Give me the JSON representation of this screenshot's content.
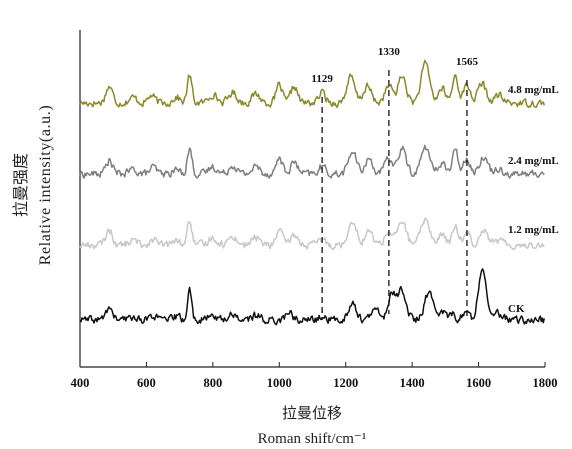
{
  "chart_data": {
    "type": "line",
    "xlabel_cn": "拉曼位移",
    "xlabel_en": "Roman shift/cm⁻¹",
    "ylabel_cn": "拉曼强度",
    "ylabel_en": "Relative intensity(a.u.)",
    "xlim": [
      400,
      1800
    ],
    "x_ticks": [
      400,
      600,
      800,
      1000,
      1200,
      1400,
      1600,
      1800
    ],
    "grid": false,
    "annotations": [
      {
        "label": "1129",
        "x": 1129
      },
      {
        "label": "1330",
        "x": 1330
      },
      {
        "label": "1565",
        "x": 1565
      }
    ],
    "series": [
      {
        "name": "4.8 mg/mL",
        "color": "#8a8a2a",
        "baseline": 0.0,
        "peaks": [
          [
            488,
            0.55,
            10
          ],
          [
            560,
            0.18,
            12
          ],
          [
            615,
            0.25,
            10
          ],
          [
            690,
            0.2,
            10
          ],
          [
            730,
            0.9,
            7
          ],
          [
            800,
            0.3,
            12
          ],
          [
            860,
            0.35,
            12
          ],
          [
            930,
            0.3,
            12
          ],
          [
            1000,
            0.6,
            9
          ],
          [
            1045,
            0.55,
            10
          ],
          [
            1129,
            0.35,
            10
          ],
          [
            1215,
            0.85,
            12
          ],
          [
            1265,
            0.55,
            12
          ],
          [
            1330,
            0.55,
            12
          ],
          [
            1370,
            0.9,
            12
          ],
          [
            1440,
            1.3,
            13
          ],
          [
            1490,
            0.5,
            10
          ],
          [
            1530,
            0.9,
            9
          ],
          [
            1565,
            0.6,
            10
          ],
          [
            1610,
            0.65,
            12
          ],
          [
            1660,
            0.25,
            12
          ]
        ]
      },
      {
        "name": "2.4 mg/mL",
        "color": "#7f7f7f",
        "baseline": 0.0,
        "peaks": [
          [
            488,
            0.45,
            10
          ],
          [
            560,
            0.15,
            12
          ],
          [
            620,
            0.22,
            10
          ],
          [
            690,
            0.15,
            10
          ],
          [
            730,
            0.85,
            7
          ],
          [
            800,
            0.25,
            12
          ],
          [
            860,
            0.3,
            12
          ],
          [
            930,
            0.25,
            12
          ],
          [
            1000,
            0.55,
            9
          ],
          [
            1045,
            0.4,
            10
          ],
          [
            1129,
            0.25,
            10
          ],
          [
            1220,
            0.75,
            12
          ],
          [
            1270,
            0.5,
            12
          ],
          [
            1330,
            0.5,
            12
          ],
          [
            1370,
            0.85,
            12
          ],
          [
            1440,
            0.9,
            13
          ],
          [
            1490,
            0.4,
            10
          ],
          [
            1530,
            0.75,
            9
          ],
          [
            1565,
            0.55,
            10
          ],
          [
            1615,
            0.6,
            12
          ],
          [
            1660,
            0.2,
            12
          ]
        ]
      },
      {
        "name": "1.2 mg/mL",
        "color": "#c8c8c8",
        "baseline": 0.0,
        "peaks": [
          [
            488,
            0.5,
            10
          ],
          [
            560,
            0.15,
            12
          ],
          [
            620,
            0.2,
            10
          ],
          [
            690,
            0.15,
            10
          ],
          [
            730,
            0.8,
            7
          ],
          [
            800,
            0.25,
            12
          ],
          [
            860,
            0.3,
            12
          ],
          [
            930,
            0.25,
            12
          ],
          [
            1000,
            0.5,
            9
          ],
          [
            1045,
            0.35,
            10
          ],
          [
            1129,
            0.2,
            10
          ],
          [
            1220,
            0.85,
            12
          ],
          [
            1270,
            0.45,
            12
          ],
          [
            1330,
            0.45,
            12
          ],
          [
            1370,
            0.8,
            12
          ],
          [
            1440,
            0.9,
            13
          ],
          [
            1490,
            0.35,
            10
          ],
          [
            1530,
            0.6,
            9
          ],
          [
            1565,
            0.45,
            10
          ],
          [
            1615,
            0.55,
            12
          ],
          [
            1660,
            0.15,
            12
          ]
        ]
      },
      {
        "name": "CK",
        "color": "#111111",
        "baseline": 0.0,
        "peaks": [
          [
            488,
            0.4,
            10
          ],
          [
            560,
            0.1,
            12
          ],
          [
            620,
            0.15,
            10
          ],
          [
            690,
            0.12,
            10
          ],
          [
            730,
            1.0,
            6
          ],
          [
            800,
            0.15,
            12
          ],
          [
            860,
            0.2,
            12
          ],
          [
            930,
            0.15,
            12
          ],
          [
            1030,
            0.25,
            10
          ],
          [
            1129,
            0.1,
            10
          ],
          [
            1220,
            0.55,
            12
          ],
          [
            1290,
            0.35,
            12
          ],
          [
            1340,
            0.85,
            12
          ],
          [
            1370,
            1.0,
            12
          ],
          [
            1450,
            0.9,
            13
          ],
          [
            1490,
            0.3,
            10
          ],
          [
            1520,
            0.2,
            9
          ],
          [
            1560,
            0.25,
            10
          ],
          [
            1612,
            1.8,
            12
          ],
          [
            1660,
            0.2,
            12
          ]
        ]
      }
    ]
  }
}
